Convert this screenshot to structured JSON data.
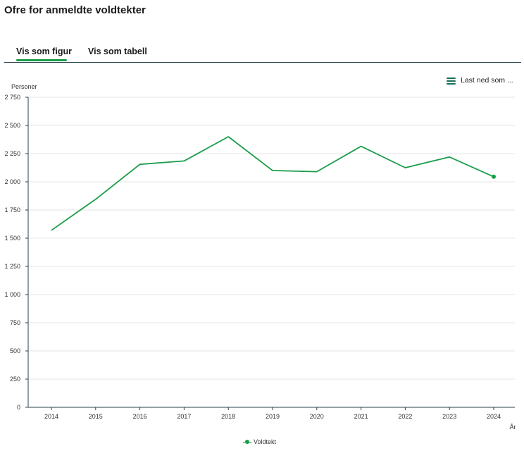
{
  "page": {
    "title": "Ofre for anmeldte voldtekter"
  },
  "tabs": [
    {
      "label": "Vis som figur",
      "active": true
    },
    {
      "label": "Vis som tabell",
      "active": false
    }
  ],
  "download": {
    "label": "Last ned som ...",
    "icon": "menu-icon"
  },
  "colors": {
    "accent": "#1a9d49",
    "axis": "#274247",
    "grid": "#e6e6e6"
  },
  "chart_data": {
    "type": "line",
    "title": "",
    "ylabel": "Personer",
    "xlabel": "År",
    "ylim": [
      0,
      2750
    ],
    "yticks": [
      0,
      250,
      500,
      750,
      1000,
      1250,
      1500,
      1750,
      2000,
      2250,
      2500,
      2750
    ],
    "ytick_labels": [
      "0",
      "250",
      "500",
      "750",
      "1 000",
      "1 250",
      "1 500",
      "1 750",
      "2 000",
      "2 250",
      "2 500",
      "2 750"
    ],
    "categories": [
      "2014",
      "2015",
      "2016",
      "2017",
      "2018",
      "2019",
      "2020",
      "2021",
      "2022",
      "2023",
      "2024"
    ],
    "series": [
      {
        "name": "Voldtekt",
        "color": "#1a9d49",
        "values": [
          1570,
          1845,
          2155,
          2185,
          2400,
          2100,
          2090,
          2315,
          2125,
          2220,
          2045
        ],
        "marker_last": true
      }
    ],
    "grid": true,
    "legend": "bottom-center"
  }
}
